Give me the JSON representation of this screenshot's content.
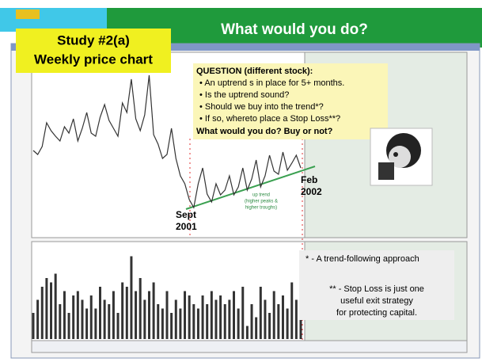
{
  "slide": {
    "title": "What would you do?",
    "study_title": [
      "Study #2(a)",
      "Weekly price chart"
    ],
    "question": {
      "heading": "QUESTION (different stock):",
      "bullets": [
        "An uptrend s in place for 5+ months.",
        "Is the uptrend sound?",
        "Should we buy into the trend*?",
        "If so, whereto place a Stop Loss**?"
      ],
      "closing": "What would you do? Buy or not?"
    },
    "annotations": {
      "sept": [
        "Sept",
        "2001"
      ],
      "feb": [
        "Feb",
        "2002"
      ],
      "uptrend": [
        "up trend",
        "(higher peaks &",
        "higher troughs)"
      ]
    },
    "notes": {
      "first": "* - A trend-following approach",
      "second": [
        "** - Stop Loss is just one",
        "useful exit strategy",
        "for protecting capital."
      ]
    }
  },
  "chart_data": [
    {
      "type": "line",
      "color": "#333333",
      "ylim": [
        0,
        100
      ],
      "values": [
        47.5,
        45,
        50,
        65,
        60,
        56.5,
        53.5,
        62.5,
        58.5,
        67.5,
        53.5,
        61.5,
        71.5,
        58.5,
        56.5,
        68.5,
        76.5,
        66.5,
        61.5,
        56.5,
        77.5,
        71.5,
        92.5,
        67.5,
        60,
        70,
        95,
        57.5,
        51.5,
        42.5,
        45,
        61.5,
        42.5,
        31.5,
        26.5,
        16.5,
        11.5,
        26.5,
        36.5,
        20,
        15,
        26.5,
        19.5,
        22.5,
        31.5,
        19.5,
        24.5,
        36.5,
        22.5,
        29.5,
        41.5,
        24.5,
        31.5,
        44.5,
        34.5,
        32.5,
        46.5,
        35,
        39.5,
        44.5,
        36.5
      ]
    },
    {
      "type": "bar",
      "color": "#333333",
      "ylim": [
        0,
        100
      ],
      "values": [
        30,
        45,
        60,
        70,
        65,
        75,
        40,
        55,
        30,
        50,
        55,
        45,
        35,
        50,
        35,
        60,
        45,
        40,
        55,
        30,
        65,
        60,
        95,
        55,
        70,
        45,
        55,
        65,
        40,
        35,
        55,
        30,
        45,
        35,
        55,
        50,
        40,
        35,
        50,
        40,
        55,
        45,
        50,
        40,
        45,
        55,
        35,
        60,
        15,
        40,
        25,
        60,
        45,
        30,
        55,
        40,
        50,
        35,
        65,
        45,
        50
      ]
    }
  ]
}
